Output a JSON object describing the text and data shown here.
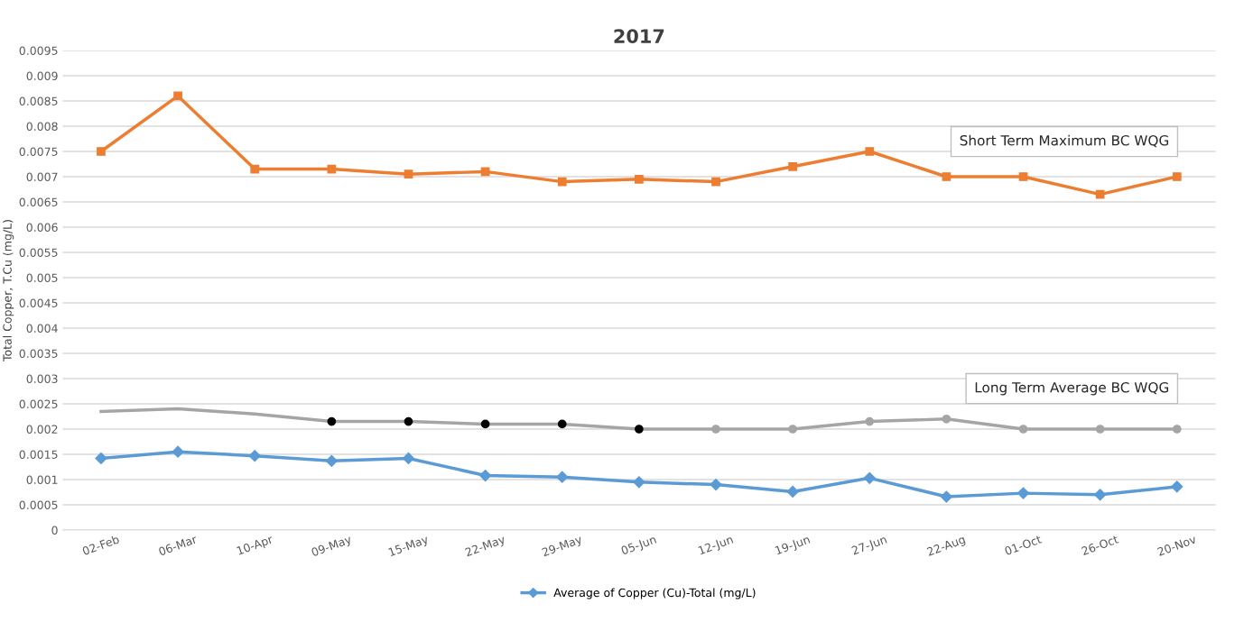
{
  "chart_data": {
    "type": "line",
    "title": "2017",
    "ylabel": "Total Copper, T.Cu (mg/L)",
    "categories": [
      "02-Feb",
      "06-Mar",
      "10-Apr",
      "09-May",
      "15-May",
      "22-May",
      "29-May",
      "05-Jun",
      "12-Jun",
      "19-Jun",
      "27-Jun",
      "22-Aug",
      "01-Oct",
      "26-Oct",
      "20-Nov"
    ],
    "series": [
      {
        "name": "Average of Copper (Cu)-Total (mg/L)",
        "color": "#5b9bd5",
        "marker": "diamond",
        "values": [
          0.00142,
          0.00155,
          0.00147,
          0.00137,
          0.00142,
          0.00108,
          0.00105,
          0.00095,
          0.0009,
          0.00076,
          0.00103,
          0.00066,
          0.00073,
          0.0007,
          0.00086
        ]
      },
      {
        "color": "#a5a5a5",
        "marker": "circle",
        "colors": [
          null,
          null,
          null,
          "#000000",
          "#000000",
          "#000000",
          "#000000",
          "#000000",
          "#a5a5a5",
          "#a5a5a5",
          "#a5a5a5",
          "#a5a5a5",
          "#a5a5a5",
          "#a5a5a5",
          "#a5a5a5"
        ],
        "values": [
          0.00235,
          0.0024,
          0.0023,
          0.00215,
          0.00215,
          0.0021,
          0.0021,
          0.002,
          0.002,
          0.002,
          0.00215,
          0.0022,
          0.002,
          0.002,
          0.002
        ]
      },
      {
        "color": "#ed7d31",
        "marker": "square",
        "values": [
          0.0075,
          0.0086,
          0.00715,
          0.00715,
          0.00705,
          0.0071,
          0.0069,
          0.00695,
          0.0069,
          0.0072,
          0.0075,
          0.007,
          0.007,
          0.00665,
          0.007
        ]
      }
    ],
    "annotations": [
      "Short Term Maximum BC WQG",
      "Long Term Average BC WQG"
    ],
    "ylim": [
      0,
      0.0095
    ],
    "yticks": [
      0,
      0.0005,
      0.001,
      0.0015,
      0.002,
      0.0025,
      0.003,
      0.0035,
      0.004,
      0.0045,
      0.005,
      0.0055,
      0.006,
      0.0065,
      0.007,
      0.0075,
      0.008,
      0.0085,
      0.009,
      0.0095
    ],
    "grid": "y",
    "legend": "bottom"
  }
}
